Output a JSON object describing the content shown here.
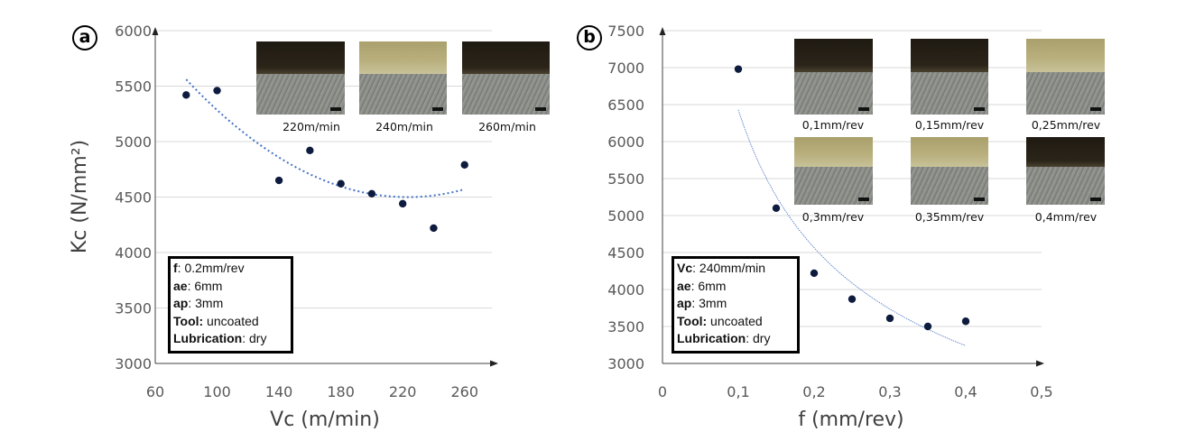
{
  "chart_data": [
    {
      "panel": "a",
      "type": "scatter",
      "xlabel": "Vc (m/min)",
      "ylabel": "Kc (N/mm²)",
      "xlim": [
        60,
        280
      ],
      "ylim": [
        3000,
        6000
      ],
      "xticks": [
        60,
        100,
        140,
        180,
        220,
        260
      ],
      "yticks": [
        3000,
        3500,
        4000,
        4500,
        5000,
        5500,
        6000
      ],
      "grid": "horizontal",
      "points": {
        "x": [
          80,
          100,
          140,
          160,
          180,
          200,
          220,
          240,
          260
        ],
        "y": [
          5420,
          5460,
          4650,
          4920,
          4620,
          4530,
          4440,
          4220,
          4790
        ]
      },
      "trendline": {
        "type": "polynomial-2",
        "x_range": [
          80,
          260
        ],
        "points": {
          "x": [
            80,
            220,
            260
          ],
          "y": [
            5560,
            4500,
            4570
          ]
        }
      },
      "insets": [
        {
          "label": "220m/min",
          "top": "dark"
        },
        {
          "label": "240m/min",
          "top": "tan"
        },
        {
          "label": "260m/min",
          "top": "dark"
        }
      ],
      "info": [
        {
          "key": "f",
          "value": ": 0.2mm/rev"
        },
        {
          "key": "ae",
          "value": ": 6mm"
        },
        {
          "key": "ap",
          "value": ": 3mm"
        },
        {
          "key": "Tool:",
          "value": " uncoated"
        },
        {
          "key": "Lubrication",
          "value": ": dry"
        }
      ]
    },
    {
      "panel": "b",
      "type": "scatter",
      "xlabel": "f (mm/rev)",
      "ylabel": "",
      "xlim": [
        0,
        0.5
      ],
      "ylim": [
        3000,
        7500
      ],
      "xticks": [
        "0",
        "0,1",
        "0,2",
        "0,3",
        "0,4",
        "0,5"
      ],
      "yticks": [
        3000,
        3500,
        4000,
        4500,
        5000,
        5500,
        6000,
        6500,
        7000,
        7500
      ],
      "grid": "horizontal",
      "points": {
        "x": [
          0.1,
          0.15,
          0.2,
          0.25,
          0.3,
          0.35,
          0.4
        ],
        "y": [
          6980,
          5100,
          4220,
          3870,
          3610,
          3500,
          3570
        ]
      },
      "trendline": {
        "type": "power",
        "x_range": [
          0.1,
          0.4
        ],
        "points": {
          "x": [
            0.1,
            0.4
          ],
          "y": [
            6430,
            3240
          ]
        }
      },
      "insets": [
        {
          "label": "0,1mm/rev",
          "top": "dark"
        },
        {
          "label": "0,15mm/rev",
          "top": "dark"
        },
        {
          "label": "0,25mm/rev",
          "top": "tan"
        },
        {
          "label": "0,3mm/rev",
          "top": "tan"
        },
        {
          "label": "0,35mm/rev",
          "top": "tan"
        },
        {
          "label": "0,4mm/rev",
          "top": "dark"
        }
      ],
      "info": [
        {
          "key": "Vc",
          "value": ": 240mm/min"
        },
        {
          "key": "ae",
          "value": ": 6mm"
        },
        {
          "key": "ap",
          "value": ": 3mm"
        },
        {
          "key": "Tool:",
          "value": " uncoated"
        },
        {
          "key": "Lubrication",
          "value": ": dry"
        }
      ]
    }
  ],
  "colors": {
    "point": "#0d1b3e",
    "trend": "#4472c4",
    "grid": "#d9d9d9",
    "dark_top": "#2b2419",
    "tan_top": "#b9b07e"
  },
  "panel_labels": [
    "a",
    "b"
  ]
}
